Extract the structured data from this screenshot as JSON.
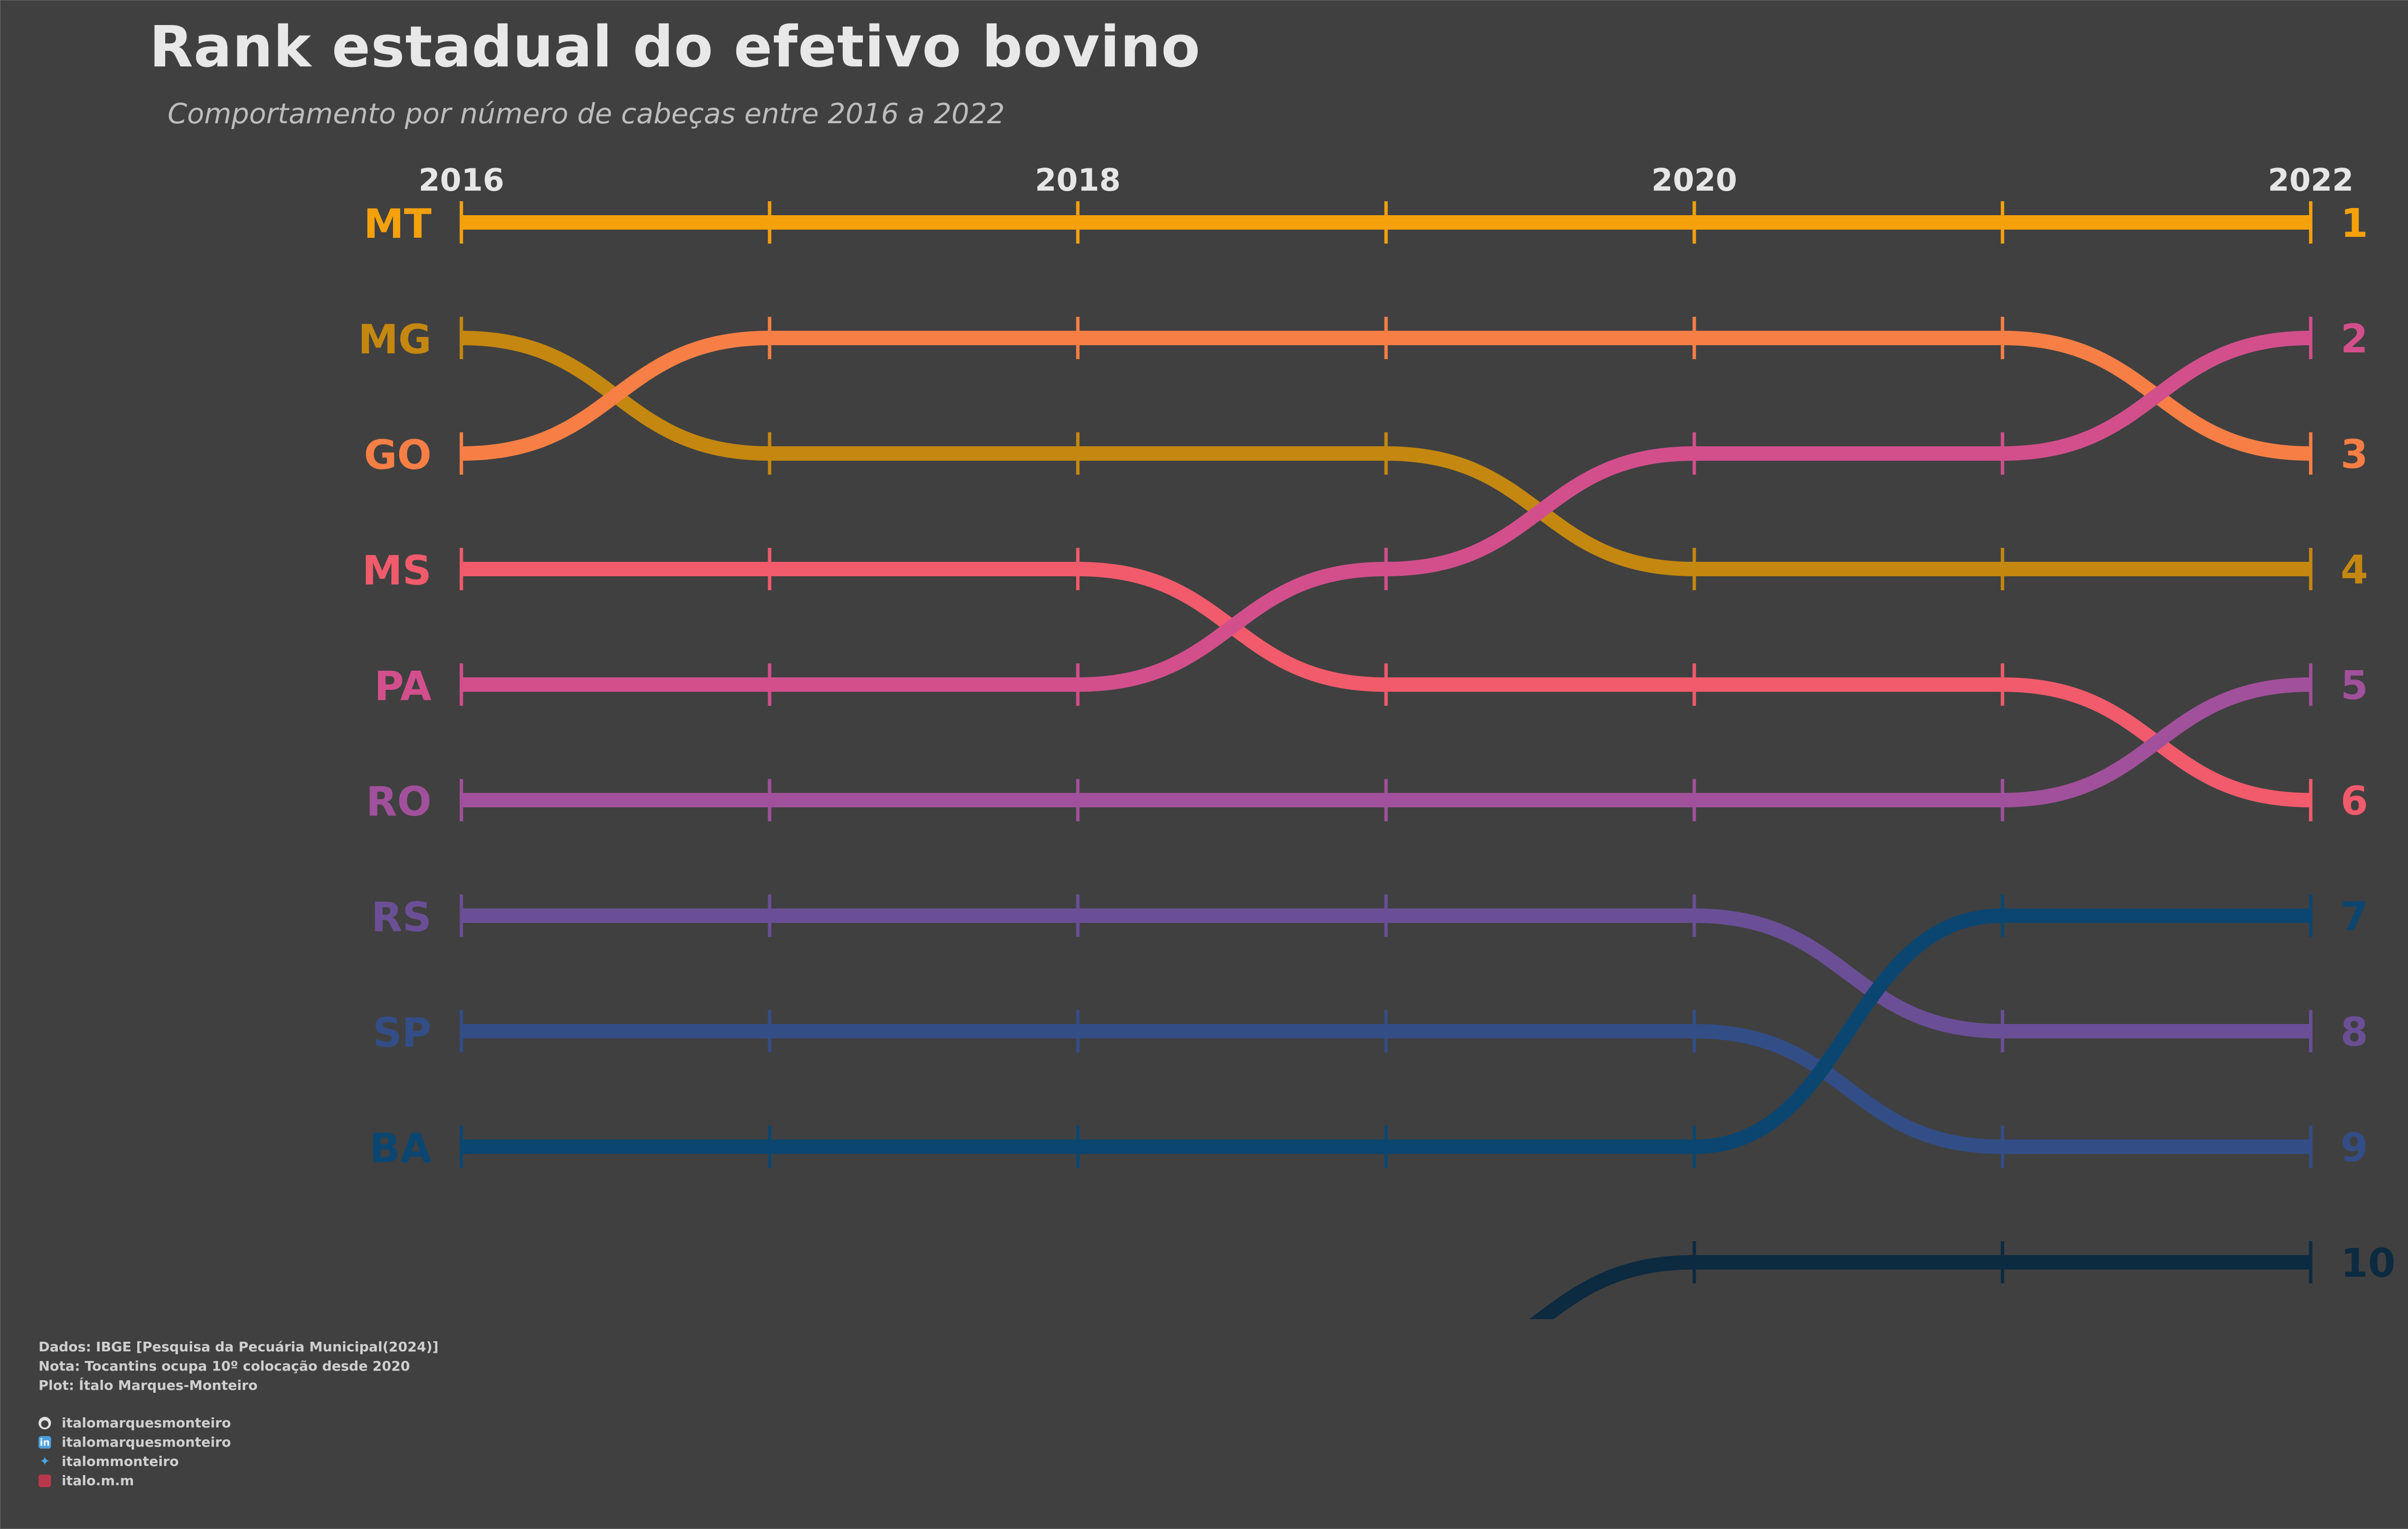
{
  "title": "Rank estadual do efetivo bovino",
  "subtitle": "Comportamento por número de cabeças entre 2016 a 2022",
  "chart_data": {
    "type": "bump",
    "x_label_years": [
      "2016",
      "2018",
      "2020",
      "2022"
    ],
    "x": [
      2016,
      2017,
      2018,
      2019,
      2020,
      2021,
      2022
    ],
    "y_axis": "rank (1 = top)",
    "ylim": [
      1,
      10
    ],
    "right_ranks": [
      "1",
      "2",
      "3",
      "4",
      "5",
      "6",
      "7",
      "8",
      "9",
      "10"
    ],
    "series": [
      {
        "name": "MT",
        "color": "#f5a10c",
        "ranks": [
          1,
          1,
          1,
          1,
          1,
          1,
          1
        ]
      },
      {
        "name": "MG",
        "color": "#c4870f",
        "ranks": [
          2,
          3,
          3,
          3,
          4,
          4,
          4
        ]
      },
      {
        "name": "GO",
        "color": "#f77f45",
        "ranks": [
          3,
          2,
          2,
          2,
          2,
          2,
          3
        ]
      },
      {
        "name": "MS",
        "color": "#f25b6b",
        "ranks": [
          4,
          4,
          4,
          5,
          5,
          5,
          6
        ]
      },
      {
        "name": "PA",
        "color": "#d24f8c",
        "ranks": [
          5,
          5,
          5,
          4,
          3,
          3,
          2
        ]
      },
      {
        "name": "RO",
        "color": "#a1509b",
        "ranks": [
          6,
          6,
          6,
          6,
          6,
          6,
          5
        ]
      },
      {
        "name": "RS",
        "color": "#6a4f96",
        "ranks": [
          7,
          7,
          7,
          7,
          7,
          8,
          8
        ]
      },
      {
        "name": "SP",
        "color": "#334d86",
        "ranks": [
          8,
          8,
          8,
          8,
          8,
          9,
          9
        ]
      },
      {
        "name": "BA",
        "color": "#0b4670",
        "ranks": [
          9,
          9,
          9,
          9,
          9,
          7,
          7
        ]
      },
      {
        "name": "",
        "color": "#0c2a40",
        "ranks": [
          null,
          null,
          null,
          11,
          10,
          10,
          10
        ]
      }
    ]
  },
  "caption": {
    "line1": "Dados: IBGE [Pesquisa da Pecuária Municipal(2024)]",
    "line2": "Nota: Tocantins ocupa 10º colocação desde 2020",
    "line3": "Plot: Ítalo Marques-Monteiro"
  },
  "social": [
    {
      "icon": "github-icon",
      "color": "#e0e0e0",
      "handle": "italomarquesmonteiro"
    },
    {
      "icon": "linkedin-icon",
      "color": "#4d9fdc",
      "handle": "italomarquesmonteiro"
    },
    {
      "icon": "twitter-icon",
      "color": "#4aa8e8",
      "handle": "italommonteiro"
    },
    {
      "icon": "instagram-icon",
      "color": "#b8384b",
      "handle": "italo.m.m"
    }
  ]
}
